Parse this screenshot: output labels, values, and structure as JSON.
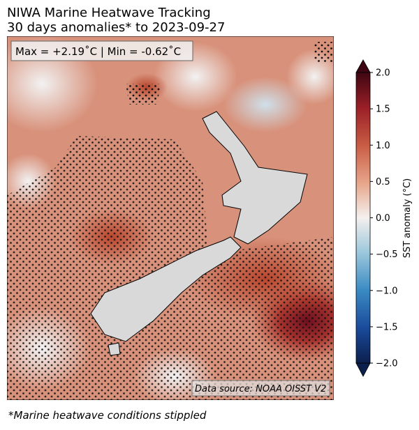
{
  "title": [
    "NIWA Marine Heatwave Tracking",
    "30 days anomalies* to 2023-09-27"
  ],
  "stats": "Max = +2.19˚C | Min = -0.62˚C",
  "source": "Data source: NOAA OISST V2",
  "footnote": "*Marine heatwave conditions stippled",
  "colorbar": {
    "label": "SST anomaly (°C)",
    "lim": [
      -2,
      2
    ],
    "ticks": [
      {
        "value": 2,
        "label": "2.0"
      },
      {
        "value": 1.5,
        "label": "1.5"
      },
      {
        "value": 1,
        "label": "1.0"
      },
      {
        "value": 0.5,
        "label": "0.5"
      },
      {
        "value": 0,
        "label": "0.0"
      },
      {
        "value": -0.5,
        "label": "−0.5"
      },
      {
        "value": -1,
        "label": "−1.0"
      },
      {
        "value": -1.5,
        "label": "−1.5"
      },
      {
        "value": -2,
        "label": "−2.0"
      }
    ]
  }
}
